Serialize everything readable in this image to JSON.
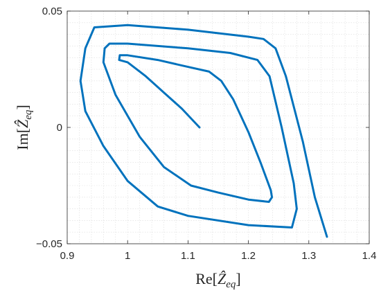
{
  "chart_data": {
    "type": "line",
    "xlabel": "Re[Ẑ_eq]",
    "ylabel": "Im[Ẑ_eq]",
    "xlim": [
      0.9,
      1.4
    ],
    "ylim": [
      -0.05,
      0.05
    ],
    "xticks": [
      0.9,
      1.0,
      1.1,
      1.2,
      1.3,
      1.4
    ],
    "xtick_labels": [
      "0.9",
      "1",
      "1.1",
      "1.2",
      "1.3",
      "1.4"
    ],
    "yticks": [
      -0.05,
      0,
      0.05
    ],
    "ytick_labels": [
      "−0.05",
      "0",
      "0.05"
    ],
    "grid": "on (minor, dotted)",
    "series": [
      {
        "color": "#0072BD",
        "x": [
          1.119,
          1.09,
          1.06,
          1.03,
          1.0,
          0.986,
          0.987,
          1.0,
          1.05,
          1.1,
          1.135,
          1.155,
          1.175,
          1.2,
          1.22,
          1.237,
          1.239,
          1.234,
          1.2,
          1.15,
          1.105,
          1.06,
          1.02,
          0.98,
          0.96,
          0.962,
          0.97,
          1.0,
          1.1,
          1.17,
          1.215,
          1.235,
          1.255,
          1.275,
          1.28,
          1.272,
          1.2,
          1.1,
          1.05,
          1.0,
          0.96,
          0.93,
          0.922,
          0.93,
          0.945,
          1.0,
          1.1,
          1.2,
          1.225,
          1.245,
          1.262,
          1.29,
          1.31,
          1.33
        ],
        "y": [
          0.0,
          0.008,
          0.015,
          0.022,
          0.028,
          0.029,
          0.031,
          0.031,
          0.029,
          0.026,
          0.024,
          0.02,
          0.012,
          -0.002,
          -0.015,
          -0.027,
          -0.03,
          -0.032,
          -0.031,
          -0.028,
          -0.025,
          -0.017,
          -0.004,
          0.014,
          0.028,
          0.034,
          0.036,
          0.036,
          0.034,
          0.032,
          0.029,
          0.022,
          0.0,
          -0.024,
          -0.035,
          -0.043,
          -0.042,
          -0.038,
          -0.034,
          -0.023,
          -0.008,
          0.007,
          0.02,
          0.034,
          0.043,
          0.044,
          0.042,
          0.039,
          0.038,
          0.034,
          0.022,
          -0.006,
          -0.03,
          -0.047
        ]
      }
    ]
  }
}
